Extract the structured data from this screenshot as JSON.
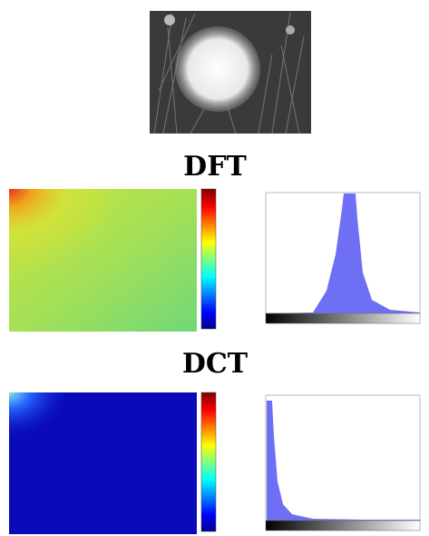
{
  "sections": [
    {
      "title": "DFT"
    },
    {
      "title": "DCT"
    }
  ]
}
